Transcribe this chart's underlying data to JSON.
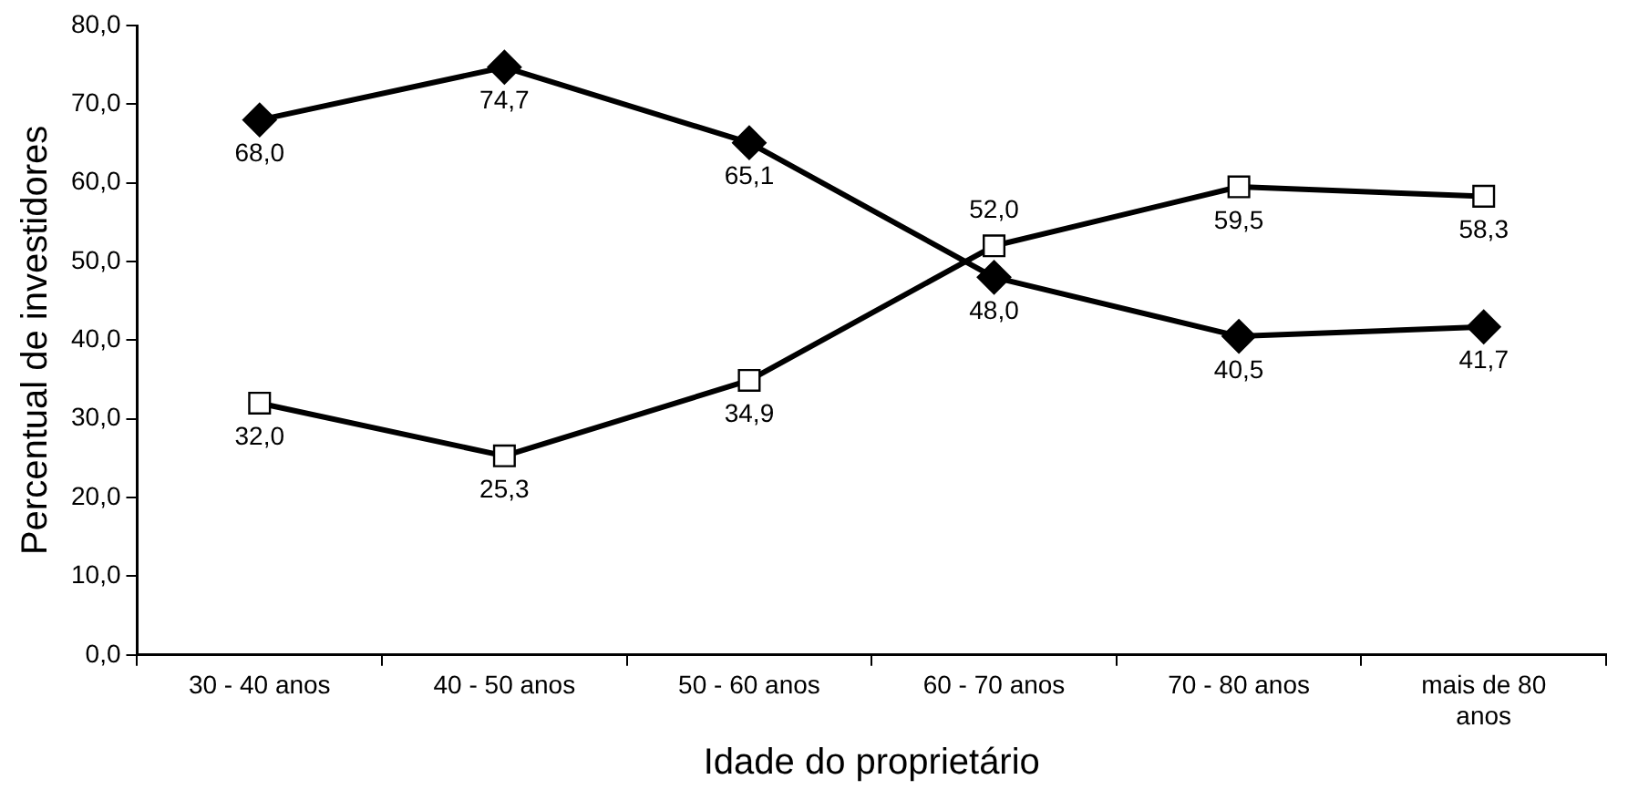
{
  "chart_data": {
    "type": "line",
    "xlabel": "Idade do proprietário",
    "ylabel": "Percentual de investidores",
    "categories": [
      "30 - 40 anos",
      "40 - 50 anos",
      "50 - 60 anos",
      "60 - 70 anos",
      "70 - 80 anos",
      "mais de 80 anos"
    ],
    "series": [
      {
        "color": "#000000",
        "marker": "diamond",
        "values": [
          68.0,
          74.7,
          65.1,
          48.0,
          40.5,
          41.7
        ],
        "value_labels": [
          "68,0",
          "74,7",
          "65,1",
          "48,0",
          "40,5",
          "41,7"
        ]
      },
      {
        "color": "#000000",
        "marker": "square",
        "values": [
          32.0,
          25.3,
          34.9,
          52.0,
          59.5,
          58.3
        ],
        "value_labels": [
          "32,0",
          "25,3",
          "34,9",
          "52,0",
          "59,5",
          "58,3"
        ]
      }
    ],
    "ylim": [
      0,
      80
    ],
    "yticks": [
      {
        "value": 0,
        "label": "0,0"
      },
      {
        "value": 10,
        "label": "10,0"
      },
      {
        "value": 20,
        "label": "20,0"
      },
      {
        "value": 30,
        "label": "30,0"
      },
      {
        "value": 40,
        "label": "40,0"
      },
      {
        "value": 50,
        "label": "50,0"
      },
      {
        "value": 60,
        "label": "60,0"
      },
      {
        "value": 70,
        "label": "70,0"
      },
      {
        "value": 80,
        "label": "80,0"
      }
    ],
    "grid": false,
    "legend": false,
    "line_style": "solid"
  }
}
